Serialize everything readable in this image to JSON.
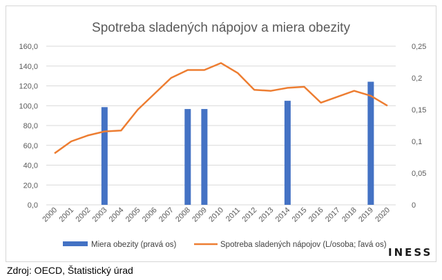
{
  "chart_data": {
    "type": "bar+line",
    "title": "Spotreba sladených nápojov a miera obezity",
    "categories": [
      "2000",
      "2001",
      "2002",
      "2003",
      "2004",
      "2005",
      "2006",
      "2007",
      "2008",
      "2009",
      "2010",
      "2011",
      "2012",
      "2013",
      "2014",
      "2015",
      "2016",
      "2017",
      "2018",
      "2019",
      "2020"
    ],
    "series": [
      {
        "name": "Miera obezity (pravá os)",
        "type": "bar",
        "axis": "right",
        "color": "#4472C4",
        "values": [
          null,
          null,
          null,
          0.154,
          null,
          null,
          null,
          null,
          0.151,
          0.151,
          null,
          null,
          null,
          null,
          0.164,
          null,
          null,
          null,
          null,
          0.194,
          null
        ]
      },
      {
        "name": "Spotreba sladených nápojov (L/osoba; ľavá os)",
        "type": "line",
        "axis": "left",
        "color": "#ED7D31",
        "values": [
          52,
          64,
          70,
          74,
          75,
          96,
          112,
          128,
          136,
          136,
          143,
          133,
          116,
          115,
          118,
          119,
          103,
          109,
          115,
          110,
          100
        ]
      }
    ],
    "y_left": {
      "min": 0,
      "max": 160,
      "step": 20,
      "tick_labels": [
        "0,0",
        "20,0",
        "40,0",
        "60,0",
        "80,0",
        "100,0",
        "120,0",
        "140,0",
        "160,0"
      ]
    },
    "y_right": {
      "min": 0,
      "max": 0.25,
      "step": 0.05,
      "tick_labels": [
        "0",
        "0,05",
        "0,1",
        "0,15",
        "0,2",
        "0,25"
      ]
    },
    "grid": true,
    "legend_position": "bottom"
  },
  "source": "Zdroj: OECD, Štatistický úrad",
  "logo": "INESS"
}
